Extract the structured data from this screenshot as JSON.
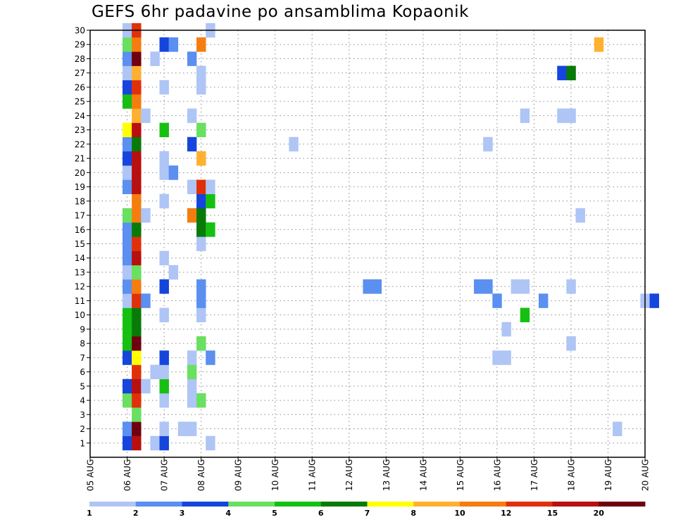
{
  "title": "GEFS 6hr padavine po ansamblima Kopaonik",
  "chart_data": {
    "type": "heatmap",
    "title": "GEFS 6hr padavine po ansamblima Kopaonik",
    "xlabel": "",
    "ylabel": "",
    "x_ticks": [
      "05 AUG",
      "06 AUG",
      "07 AUG",
      "08 AUG",
      "09 AUG",
      "10 AUG",
      "11 AUG",
      "12 AUG",
      "13 AUG",
      "14 AUG",
      "15 AUG",
      "16 AUG",
      "17 AUG",
      "18 AUG",
      "19 AUG",
      "20 AUG"
    ],
    "y_ticks": [
      1,
      2,
      3,
      4,
      5,
      6,
      7,
      8,
      9,
      10,
      11,
      12,
      13,
      14,
      15,
      16,
      17,
      18,
      19,
      20,
      21,
      22,
      23,
      24,
      25,
      26,
      27,
      28,
      29,
      30
    ],
    "grid": true,
    "legend_position": "bottom",
    "levels": [
      "1",
      "2",
      "3",
      "4",
      "5",
      "6",
      "7",
      "8",
      "10",
      "12",
      "15",
      "20"
    ],
    "colors": [
      "#aec5f5",
      "#5b8ff0",
      "#1545dc",
      "#69e060",
      "#16c012",
      "#087a08",
      "#ffff00",
      "#ffb030",
      "#f57d10",
      "#e0300a",
      "#b80f0f",
      "#700010"
    ],
    "cells": [
      [
        "06 AUG 00Z",
        1,
        2
      ],
      [
        "06 AUG 06Z",
        1,
        10
      ],
      [
        "06 AUG 18Z",
        1,
        0
      ],
      [
        "07 AUG 00Z",
        1,
        2
      ],
      [
        "08 AUG 06Z",
        1,
        0
      ],
      [
        "06 AUG 00Z",
        2,
        1
      ],
      [
        "06 AUG 06Z",
        2,
        11
      ],
      [
        "07 AUG 00Z",
        2,
        0
      ],
      [
        "07 AUG 12Z",
        2,
        0
      ],
      [
        "07 AUG 18Z",
        2,
        0
      ],
      [
        "19 AUG 06Z",
        2,
        0
      ],
      [
        "06 AUG 06Z",
        3,
        3
      ],
      [
        "06 AUG 00Z",
        4,
        3
      ],
      [
        "06 AUG 06Z",
        4,
        9
      ],
      [
        "07 AUG 00Z",
        4,
        0
      ],
      [
        "07 AUG 18Z",
        4,
        0
      ],
      [
        "08 AUG 00Z",
        4,
        3
      ],
      [
        "06 AUG 00Z",
        5,
        2
      ],
      [
        "06 AUG 06Z",
        5,
        10
      ],
      [
        "06 AUG 12Z",
        5,
        0
      ],
      [
        "07 AUG 00Z",
        5,
        4
      ],
      [
        "07 AUG 18Z",
        5,
        0
      ],
      [
        "06 AUG 06Z",
        6,
        9
      ],
      [
        "06 AUG 18Z",
        6,
        0
      ],
      [
        "07 AUG 00Z",
        6,
        0
      ],
      [
        "07 AUG 18Z",
        6,
        3
      ],
      [
        "06 AUG 00Z",
        7,
        2
      ],
      [
        "06 AUG 06Z",
        7,
        6
      ],
      [
        "07 AUG 00Z",
        7,
        2
      ],
      [
        "07 AUG 18Z",
        7,
        0
      ],
      [
        "08 AUG 06Z",
        7,
        1
      ],
      [
        "16 AUG 00Z",
        7,
        0
      ],
      [
        "16 AUG 06Z",
        7,
        0
      ],
      [
        "06 AUG 00Z",
        8,
        4
      ],
      [
        "06 AUG 06Z",
        8,
        11
      ],
      [
        "08 AUG 00Z",
        8,
        3
      ],
      [
        "18 AUG 00Z",
        8,
        0
      ],
      [
        "06 AUG 00Z",
        9,
        4
      ],
      [
        "06 AUG 06Z",
        9,
        5
      ],
      [
        "16 AUG 06Z",
        9,
        0
      ],
      [
        "06 AUG 00Z",
        10,
        4
      ],
      [
        "06 AUG 06Z",
        10,
        5
      ],
      [
        "07 AUG 00Z",
        10,
        0
      ],
      [
        "08 AUG 00Z",
        10,
        0
      ],
      [
        "16 AUG 18Z",
        10,
        4
      ],
      [
        "06 AUG 00Z",
        11,
        0
      ],
      [
        "06 AUG 06Z",
        11,
        9
      ],
      [
        "06 AUG 12Z",
        11,
        1
      ],
      [
        "08 AUG 00Z",
        11,
        1
      ],
      [
        "16 AUG 00Z",
        11,
        1
      ],
      [
        "17 AUG 06Z",
        11,
        1
      ],
      [
        "20 AUG 00Z",
        11,
        0
      ],
      [
        "20 AUG 06Z",
        11,
        2
      ],
      [
        "06 AUG 00Z",
        12,
        1
      ],
      [
        "06 AUG 06Z",
        12,
        8
      ],
      [
        "07 AUG 00Z",
        12,
        2
      ],
      [
        "08 AUG 00Z",
        12,
        1
      ],
      [
        "12 AUG 12Z",
        12,
        1
      ],
      [
        "12 AUG 18Z",
        12,
        1
      ],
      [
        "15 AUG 12Z",
        12,
        1
      ],
      [
        "15 AUG 18Z",
        12,
        1
      ],
      [
        "16 AUG 12Z",
        12,
        0
      ],
      [
        "16 AUG 18Z",
        12,
        0
      ],
      [
        "18 AUG 00Z",
        12,
        0
      ],
      [
        "06 AUG 00Z",
        13,
        0
      ],
      [
        "06 AUG 06Z",
        13,
        3
      ],
      [
        "07 AUG 06Z",
        13,
        0
      ],
      [
        "06 AUG 00Z",
        14,
        1
      ],
      [
        "06 AUG 06Z",
        14,
        10
      ],
      [
        "07 AUG 00Z",
        14,
        0
      ],
      [
        "06 AUG 00Z",
        15,
        1
      ],
      [
        "06 AUG 06Z",
        15,
        9
      ],
      [
        "08 AUG 00Z",
        15,
        0
      ],
      [
        "06 AUG 00Z",
        16,
        1
      ],
      [
        "06 AUG 06Z",
        16,
        5
      ],
      [
        "08 AUG 00Z",
        16,
        5
      ],
      [
        "08 AUG 06Z",
        16,
        4
      ],
      [
        "06 AUG 00Z",
        17,
        3
      ],
      [
        "06 AUG 06Z",
        17,
        8
      ],
      [
        "06 AUG 12Z",
        17,
        0
      ],
      [
        "07 AUG 18Z",
        17,
        8
      ],
      [
        "08 AUG 00Z",
        17,
        5
      ],
      [
        "18 AUG 06Z",
        17,
        0
      ],
      [
        "06 AUG 06Z",
        18,
        8
      ],
      [
        "07 AUG 00Z",
        18,
        0
      ],
      [
        "08 AUG 00Z",
        18,
        2
      ],
      [
        "08 AUG 06Z",
        18,
        4
      ],
      [
        "06 AUG 00Z",
        19,
        1
      ],
      [
        "06 AUG 06Z",
        19,
        10
      ],
      [
        "07 AUG 18Z",
        19,
        0
      ],
      [
        "08 AUG 00Z",
        19,
        9
      ],
      [
        "08 AUG 06Z",
        19,
        0
      ],
      [
        "06 AUG 00Z",
        20,
        0
      ],
      [
        "06 AUG 06Z",
        20,
        10
      ],
      [
        "07 AUG 00Z",
        20,
        0
      ],
      [
        "07 AUG 06Z",
        20,
        1
      ],
      [
        "06 AUG 00Z",
        21,
        2
      ],
      [
        "06 AUG 06Z",
        21,
        10
      ],
      [
        "07 AUG 00Z",
        21,
        0
      ],
      [
        "08 AUG 00Z",
        21,
        7
      ],
      [
        "06 AUG 00Z",
        22,
        1
      ],
      [
        "06 AUG 06Z",
        22,
        5
      ],
      [
        "07 AUG 18Z",
        22,
        2
      ],
      [
        "10 AUG 12Z",
        22,
        0
      ],
      [
        "15 AUG 18Z",
        22,
        0
      ],
      [
        "06 AUG 00Z",
        23,
        6
      ],
      [
        "06 AUG 06Z",
        23,
        10
      ],
      [
        "07 AUG 00Z",
        23,
        4
      ],
      [
        "08 AUG 00Z",
        23,
        3
      ],
      [
        "06 AUG 06Z",
        24,
        7
      ],
      [
        "06 AUG 12Z",
        24,
        0
      ],
      [
        "07 AUG 18Z",
        24,
        0
      ],
      [
        "16 AUG 18Z",
        24,
        0
      ],
      [
        "17 AUG 18Z",
        24,
        0
      ],
      [
        "18 AUG 00Z",
        24,
        0
      ],
      [
        "06 AUG 00Z",
        25,
        4
      ],
      [
        "06 AUG 06Z",
        25,
        8
      ],
      [
        "06 AUG 00Z",
        26,
        2
      ],
      [
        "06 AUG 06Z",
        26,
        9
      ],
      [
        "07 AUG 00Z",
        26,
        0
      ],
      [
        "08 AUG 00Z",
        26,
        0
      ],
      [
        "06 AUG 00Z",
        27,
        0
      ],
      [
        "06 AUG 06Z",
        27,
        7
      ],
      [
        "08 AUG 00Z",
        27,
        0
      ],
      [
        "17 AUG 18Z",
        27,
        2
      ],
      [
        "18 AUG 00Z",
        27,
        5
      ],
      [
        "06 AUG 00Z",
        28,
        1
      ],
      [
        "06 AUG 06Z",
        28,
        11
      ],
      [
        "06 AUG 18Z",
        28,
        0
      ],
      [
        "07 AUG 18Z",
        28,
        1
      ],
      [
        "06 AUG 00Z",
        29,
        3
      ],
      [
        "06 AUG 06Z",
        29,
        8
      ],
      [
        "07 AUG 00Z",
        29,
        2
      ],
      [
        "07 AUG 06Z",
        29,
        1
      ],
      [
        "08 AUG 00Z",
        29,
        8
      ],
      [
        "18 AUG 18Z",
        29,
        7
      ],
      [
        "06 AUG 00Z",
        30,
        0
      ],
      [
        "06 AUG 06Z",
        30,
        9
      ],
      [
        "08 AUG 06Z",
        30,
        0
      ]
    ]
  }
}
